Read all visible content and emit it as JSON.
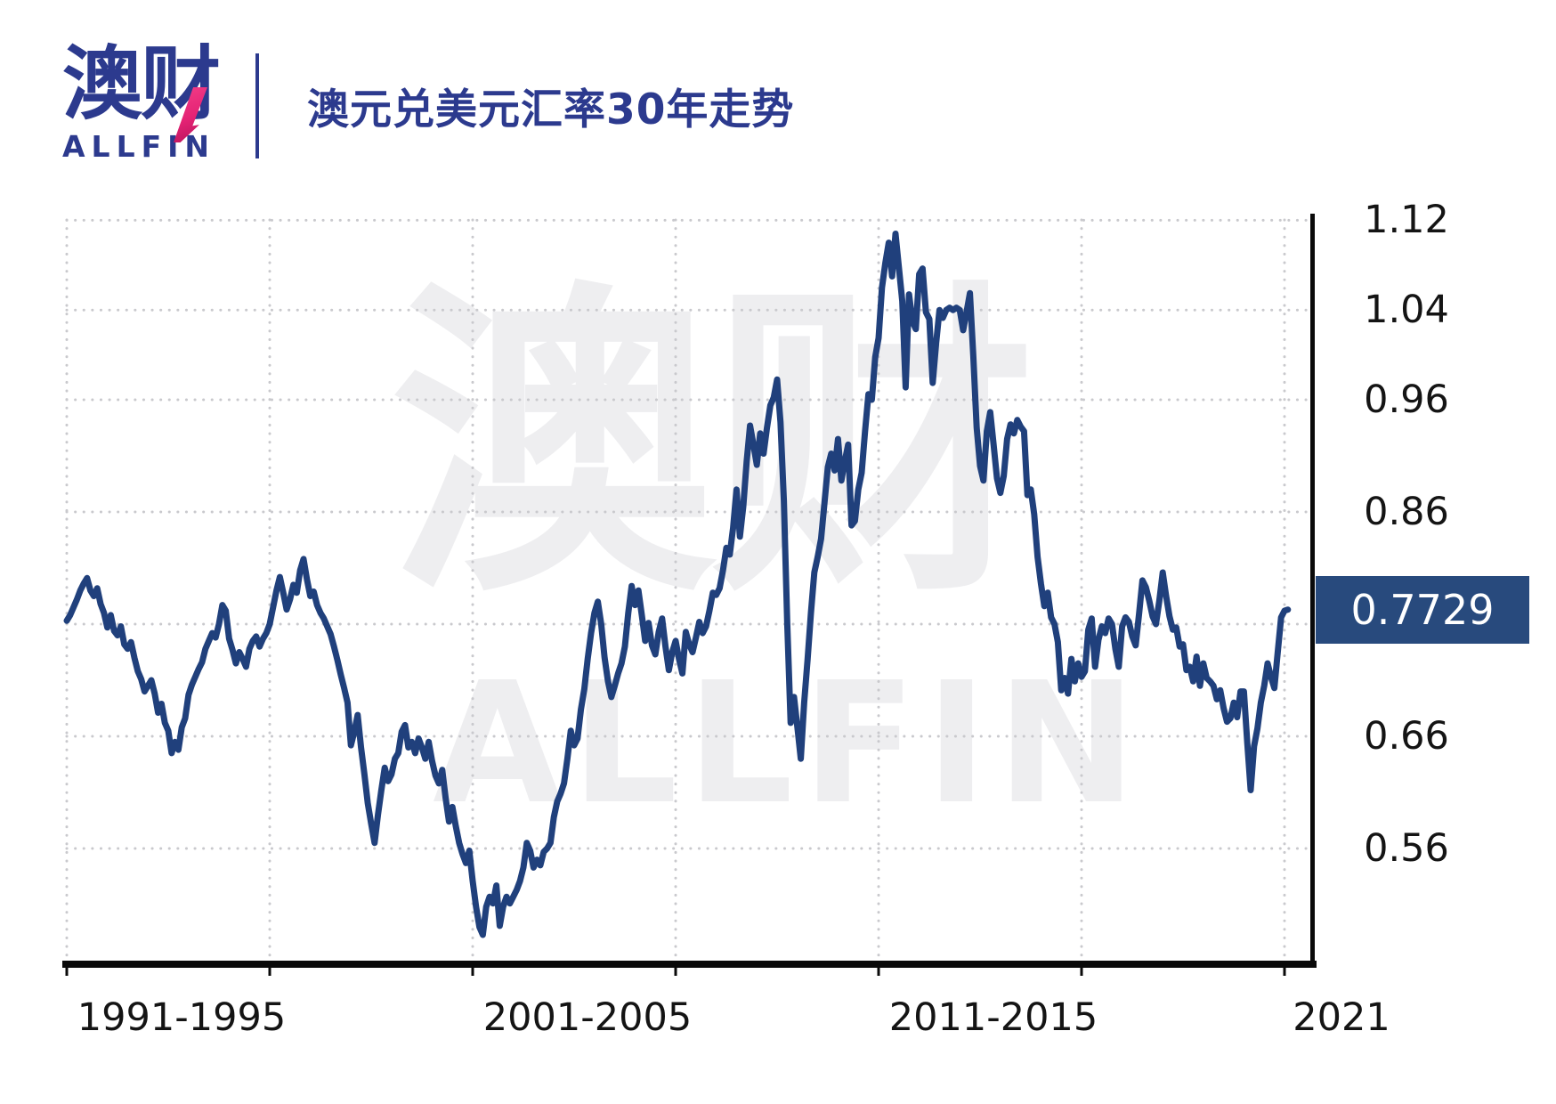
{
  "brand": {
    "logo_cn": "澳财",
    "logo_en": "ALLFIN"
  },
  "header": {
    "title": "澳元兑美元汇率30年走势"
  },
  "watermark": {
    "cn": "澳财",
    "en": "ALLFIN"
  },
  "colors": {
    "brand_navy": "#2c3a8e",
    "brand_pink": "#e42274",
    "line": "#20407c",
    "badge_background": "#284a7d",
    "badge_text": "#ffffff",
    "gridline": "#c9c9cd",
    "axis": "#0a0a0a",
    "watermark": "#eeeef0"
  },
  "chart_data": {
    "type": "line",
    "title": "澳元兑美元汇率30年走势",
    "series_name": "AUD/USD exchange rate",
    "x_start_year": 1991,
    "points_per_year": 12,
    "x_gridline_years": [
      1991,
      1996,
      2001,
      2006,
      2011,
      2016,
      2021
    ],
    "x_tick_labels": [
      "1991-1995",
      "2001-2005",
      "2011-2015",
      "2021"
    ],
    "y_tick_labels": [
      "1.12",
      "1.04",
      "0.96",
      "0.86",
      "0.66",
      "0.56"
    ],
    "y_ticks": [
      1.12,
      1.04,
      0.96,
      0.86,
      0.66,
      0.56
    ],
    "y_gridlines": [
      1.12,
      1.04,
      0.96,
      0.86,
      0.76,
      0.66,
      0.56
    ],
    "ylim": [
      0.45,
      1.147
    ],
    "grid": "dotted",
    "legend": "none",
    "current_value": 0.7729,
    "current_value_label": "0.7729",
    "values": [
      0.763,
      0.768,
      0.775,
      0.782,
      0.79,
      0.796,
      0.801,
      0.79,
      0.785,
      0.792,
      0.778,
      0.77,
      0.757,
      0.768,
      0.754,
      0.75,
      0.758,
      0.742,
      0.738,
      0.744,
      0.73,
      0.718,
      0.711,
      0.7,
      0.705,
      0.71,
      0.698,
      0.681,
      0.689,
      0.672,
      0.665,
      0.645,
      0.655,
      0.648,
      0.668,
      0.676,
      0.697,
      0.706,
      0.713,
      0.72,
      0.726,
      0.738,
      0.745,
      0.752,
      0.748,
      0.76,
      0.777,
      0.772,
      0.747,
      0.737,
      0.725,
      0.735,
      0.729,
      0.722,
      0.738,
      0.745,
      0.749,
      0.74,
      0.747,
      0.752,
      0.76,
      0.775,
      0.79,
      0.802,
      0.788,
      0.773,
      0.782,
      0.795,
      0.788,
      0.808,
      0.818,
      0.8,
      0.785,
      0.789,
      0.777,
      0.77,
      0.765,
      0.758,
      0.751,
      0.74,
      0.728,
      0.715,
      0.703,
      0.69,
      0.652,
      0.664,
      0.679,
      0.65,
      0.626,
      0.6,
      0.582,
      0.565,
      0.59,
      0.612,
      0.632,
      0.62,
      0.626,
      0.64,
      0.645,
      0.664,
      0.67,
      0.65,
      0.655,
      0.645,
      0.658,
      0.65,
      0.64,
      0.655,
      0.638,
      0.625,
      0.618,
      0.63,
      0.605,
      0.584,
      0.597,
      0.58,
      0.565,
      0.555,
      0.547,
      0.558,
      0.531,
      0.508,
      0.49,
      0.483,
      0.508,
      0.517,
      0.511,
      0.527,
      0.491,
      0.508,
      0.517,
      0.511,
      0.517,
      0.523,
      0.531,
      0.543,
      0.565,
      0.558,
      0.543,
      0.55,
      0.545,
      0.557,
      0.56,
      0.565,
      0.588,
      0.602,
      0.609,
      0.618,
      0.64,
      0.665,
      0.652,
      0.658,
      0.684,
      0.702,
      0.729,
      0.752,
      0.77,
      0.78,
      0.76,
      0.73,
      0.709,
      0.695,
      0.705,
      0.716,
      0.725,
      0.74,
      0.77,
      0.794,
      0.777,
      0.79,
      0.768,
      0.745,
      0.761,
      0.741,
      0.733,
      0.753,
      0.765,
      0.74,
      0.719,
      0.735,
      0.745,
      0.729,
      0.716,
      0.753,
      0.742,
      0.735,
      0.748,
      0.762,
      0.752,
      0.758,
      0.772,
      0.788,
      0.786,
      0.792,
      0.808,
      0.828,
      0.822,
      0.846,
      0.88,
      0.838,
      0.865,
      0.905,
      0.937,
      0.92,
      0.902,
      0.93,
      0.912,
      0.935,
      0.955,
      0.962,
      0.978,
      0.94,
      0.87,
      0.76,
      0.672,
      0.695,
      0.668,
      0.64,
      0.69,
      0.728,
      0.77,
      0.806,
      0.82,
      0.836,
      0.868,
      0.9,
      0.912,
      0.897,
      0.925,
      0.888,
      0.905,
      0.92,
      0.848,
      0.852,
      0.88,
      0.895,
      0.932,
      0.965,
      0.96,
      0.998,
      1.015,
      1.06,
      1.082,
      1.1,
      1.07,
      1.108,
      1.078,
      1.048,
      0.971,
      1.054,
      1.03,
      1.023,
      1.072,
      1.077,
      1.038,
      1.032,
      0.975,
      1.01,
      1.04,
      1.033,
      1.04,
      1.042,
      1.04,
      1.042,
      1.04,
      1.022,
      1.038,
      1.055,
      0.999,
      0.935,
      0.901,
      0.888,
      0.932,
      0.949,
      0.92,
      0.89,
      0.877,
      0.892,
      0.925,
      0.938,
      0.93,
      0.942,
      0.936,
      0.932,
      0.875,
      0.88,
      0.858,
      0.82,
      0.796,
      0.776,
      0.788,
      0.766,
      0.76,
      0.744,
      0.701,
      0.712,
      0.698,
      0.729,
      0.709,
      0.725,
      0.713,
      0.718,
      0.755,
      0.765,
      0.722,
      0.746,
      0.758,
      0.752,
      0.765,
      0.76,
      0.738,
      0.722,
      0.758,
      0.766,
      0.762,
      0.749,
      0.741,
      0.769,
      0.799,
      0.793,
      0.781,
      0.767,
      0.76,
      0.781,
      0.806,
      0.785,
      0.767,
      0.755,
      0.757,
      0.74,
      0.742,
      0.719,
      0.722,
      0.709,
      0.731,
      0.705,
      0.725,
      0.712,
      0.709,
      0.705,
      0.693,
      0.701,
      0.685,
      0.673,
      0.676,
      0.69,
      0.677,
      0.7,
      0.7,
      0.654,
      0.612,
      0.651,
      0.667,
      0.69,
      0.705,
      0.725,
      0.713,
      0.703,
      0.735,
      0.766,
      0.772,
      0.7729
    ]
  }
}
